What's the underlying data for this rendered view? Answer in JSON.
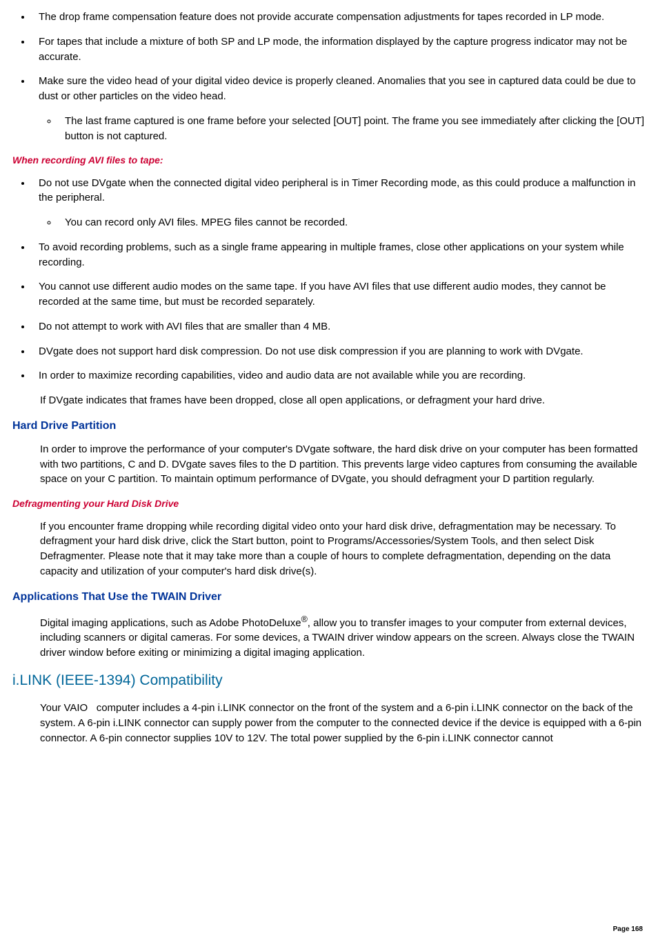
{
  "topBullets": [
    {
      "text": "The drop frame compensation feature does not provide accurate compensation adjustments for tapes recorded in LP mode."
    },
    {
      "text": "For tapes that include a mixture of both SP and LP mode, the information displayed by the capture progress indicator may not be accurate."
    },
    {
      "text": "Make sure the video head of your digital video device is properly cleaned. Anomalies that you see in captured data could be due to dust or other particles on the video head.",
      "sub": [
        "The last frame captured is one frame before your selected [OUT] point. The frame you see immediately after clicking the [OUT] button is not captured."
      ]
    }
  ],
  "recHeading": "When recording AVI files to tape:",
  "recBullets": [
    {
      "text": "Do not use DVgate when the connected digital video peripheral is in Timer Recording mode, as this could produce a malfunction in the peripheral.",
      "sub": [
        "You can record only AVI files. MPEG files cannot be recorded."
      ]
    },
    {
      "text": "To avoid recording problems, such as a single frame appearing in multiple frames, close other applications on your system while recording."
    },
    {
      "text": "You cannot use different audio modes on the same tape. If you have AVI files that use different audio modes, they cannot be recorded at the same time, but must be recorded separately."
    },
    {
      "text": "Do not attempt to work with AVI files that are smaller than 4 MB."
    },
    {
      "text": "DVgate does not support hard disk compression. Do not use disk compression if you are planning to work with DVgate."
    },
    {
      "text": "In order to maximize recording capabilities, video and audio data are not available while you are recording."
    }
  ],
  "recAfterPara": "If DVgate indicates that frames have been dropped, close all open applications, or defragment your hard drive.",
  "hdHeading": "Hard Drive Partition",
  "hdPara": "In order to improve the performance of your computer's DVgate software, the hard disk drive on your computer has been formatted with two partitions, C and D. DVgate saves files to the D partition. This prevents large video captures from consuming the available space on your C partition. To maintain optimum performance of DVgate, you should defragment your D partition regularly.",
  "defragHeading": "Defragmenting your Hard Disk Drive",
  "defragPara": "If you encounter frame dropping while recording digital video onto your hard disk drive, defragmentation may be necessary. To defragment your hard disk drive, click the Start button, point to Programs/Accessories/System Tools, and then select Disk Defragmenter. Please note that it may take more than a couple of hours to complete defragmentation, depending on the data capacity and utilization of your computer's hard disk drive(s).",
  "twainHeading": "Applications That Use the TWAIN Driver",
  "twainBefore": "Digital imaging applications, such as Adobe PhotoDeluxe",
  "twainAfter": ", allow you to transfer images to your computer from external devices, including scanners or digital cameras. For some devices, a TWAIN driver window appears on the screen. Always close the TWAIN driver window before exiting or minimizing a digital imaging application.",
  "ilinkHeading": "i.LINK (IEEE-1394) Compatibility",
  "ilinkPara": "Your VAIO   computer includes a 4-pin i.LINK connector on the front of the system and a 6-pin i.LINK connector on the back of the system. A 6-pin i.LINK connector can supply power from the computer to the connected device if the device is equipped with a 6-pin connector. A 6-pin connector supplies 10V to 12V. The total power supplied by the 6-pin i.LINK connector cannot",
  "pageNum": "Page 168"
}
